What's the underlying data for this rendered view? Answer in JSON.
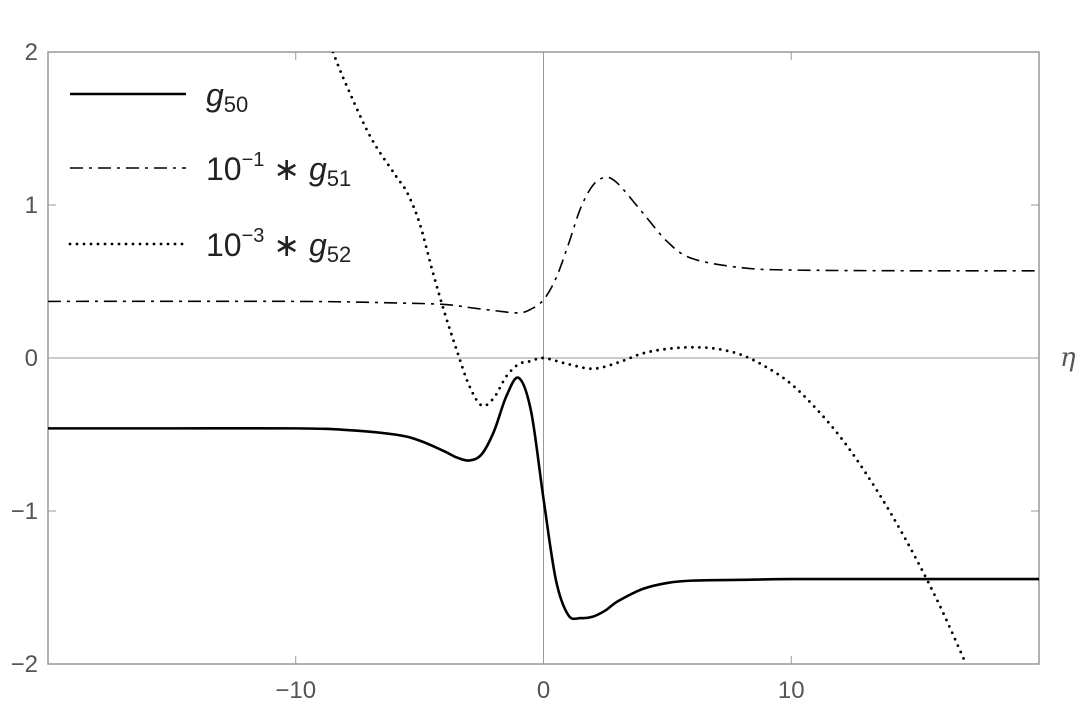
{
  "chart_data": {
    "type": "line",
    "title": "",
    "xlabel": "η",
    "ylabel": "",
    "xlim": [
      -20,
      20
    ],
    "ylim": [
      -2,
      2
    ],
    "x_ticks": [
      -10,
      0,
      10
    ],
    "x_tick_labels": [
      "−10",
      "0",
      "10"
    ],
    "y_ticks": [
      -2,
      -1,
      0,
      1,
      2
    ],
    "y_tick_labels": [
      "−2",
      "−1",
      "0",
      "1",
      "2"
    ],
    "grid": false,
    "legend_position": "top-left",
    "series": [
      {
        "name": "g50",
        "legend": {
          "base": "g",
          "sub": "50"
        },
        "style": "solid",
        "x": [
          -20,
          -15,
          -10,
          -8,
          -6,
          -5,
          -4,
          -3.5,
          -3,
          -2.5,
          -2,
          -1.5,
          -1,
          -0.5,
          0,
          0.5,
          1,
          1.5,
          2,
          2.5,
          3,
          4,
          5,
          6,
          8,
          10,
          15,
          20
        ],
        "y": [
          -0.46,
          -0.46,
          -0.46,
          -0.47,
          -0.5,
          -0.54,
          -0.61,
          -0.65,
          -0.67,
          -0.63,
          -0.48,
          -0.25,
          -0.13,
          -0.35,
          -0.92,
          -1.45,
          -1.68,
          -1.7,
          -1.69,
          -1.65,
          -1.59,
          -1.51,
          -1.47,
          -1.455,
          -1.45,
          -1.445,
          -1.445,
          -1.445
        ]
      },
      {
        "name": "10^-1 * g51",
        "legend": {
          "base": "10",
          "sup": "−1",
          "op": " ∗ ",
          "var": "g",
          "sub": "51"
        },
        "style": "dashdot",
        "x": [
          -20,
          -10,
          -6,
          -4,
          -3,
          -2,
          -1,
          -0.5,
          0,
          0.5,
          1,
          1.5,
          2,
          2.5,
          3,
          4,
          5,
          6,
          8,
          10,
          15,
          20
        ],
        "y": [
          0.37,
          0.37,
          0.36,
          0.35,
          0.33,
          0.31,
          0.295,
          0.32,
          0.38,
          0.52,
          0.74,
          0.98,
          1.13,
          1.18,
          1.14,
          0.95,
          0.76,
          0.65,
          0.59,
          0.575,
          0.57,
          0.57
        ]
      },
      {
        "name": "10^-3 * g52",
        "legend": {
          "base": "10",
          "sup": "−3",
          "op": " ∗ ",
          "var": "g",
          "sub": "52"
        },
        "style": "dotted",
        "x": [
          -8.5,
          -8,
          -7,
          -6,
          -5.5,
          -5,
          -4.5,
          -4,
          -3.5,
          -3,
          -2.5,
          -2,
          -1.5,
          -1,
          -0.5,
          0,
          1,
          2,
          3,
          4,
          5,
          6,
          7,
          8,
          9,
          10,
          11,
          12,
          13,
          14,
          15,
          16,
          17
        ],
        "y": [
          2.0,
          1.8,
          1.45,
          1.2,
          1.08,
          0.88,
          0.58,
          0.3,
          0.05,
          -0.18,
          -0.31,
          -0.26,
          -0.12,
          -0.04,
          -0.02,
          0.0,
          -0.04,
          -0.07,
          -0.03,
          0.03,
          0.06,
          0.07,
          0.06,
          0.02,
          -0.06,
          -0.17,
          -0.33,
          -0.52,
          -0.75,
          -1.01,
          -1.3,
          -1.62,
          -1.98
        ]
      }
    ]
  }
}
